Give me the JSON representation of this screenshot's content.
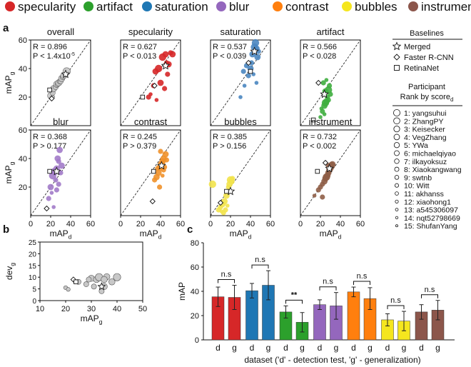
{
  "legend_top": [
    {
      "label": "specularity",
      "color": "#d62728"
    },
    {
      "label": "artifact",
      "color": "#2ca02c"
    },
    {
      "label": "saturation",
      "color": "#1f77b4"
    },
    {
      "label": "blur",
      "color": "#9467bd"
    },
    {
      "label": "contrast",
      "color": "#ff7f0e"
    },
    {
      "label": "bubbles",
      "color": "#f5e61e"
    },
    {
      "label": "instrument",
      "color": "#8c564b"
    }
  ],
  "panel_labels": {
    "a": "a",
    "b": "b",
    "c": "c"
  },
  "baselines": {
    "title": "Baselines",
    "items": [
      {
        "label": "Merged",
        "marker": "star"
      },
      {
        "label": "Faster R-CNN",
        "marker": "diamond"
      },
      {
        "label": "RetinaNet",
        "marker": "square"
      }
    ]
  },
  "participants": {
    "title_line1": "Participant",
    "title_line2": "Rank by score",
    "title_sub": "d",
    "items": [
      "1: yangsuhui",
      "2: ZhangPY",
      "3: Keisecker",
      "4: VegZhang",
      "5: YWa",
      "6: michaelqiyao",
      "7: ilkayoksuz",
      "8: Xiaokangwang",
      "9: swtnb",
      "10: Witt",
      "11: akhanss",
      "12: xiaohong1",
      "13: a545306097",
      "14: nqt52798669",
      "15: ShufanYang"
    ]
  },
  "chart_data": [
    {
      "type": "scatter",
      "id": "a-grid",
      "xlabel": "mAP",
      "xlabel_sub": "d",
      "ylabel": "mAP",
      "ylabel_sub": "g",
      "xlim": [
        0,
        60
      ],
      "ylim": [
        0,
        60
      ],
      "ticks": [
        0,
        20,
        40,
        60
      ],
      "panels": [
        {
          "title": "overall",
          "color": "#c8c8c8",
          "R": "R = 0.896",
          "P": "P < 1.4x10",
          "P_sup": "-5",
          "points": [
            [
              20,
              21,
              4
            ],
            [
              22,
              23,
              3
            ],
            [
              23,
              26,
              4
            ],
            [
              25,
              27,
              3
            ],
            [
              26,
              29,
              4
            ],
            [
              27,
              29,
              3
            ],
            [
              28,
              30,
              4
            ],
            [
              29,
              31,
              3
            ],
            [
              30,
              31,
              3
            ],
            [
              31,
              33,
              4
            ],
            [
              32,
              34,
              3
            ],
            [
              33,
              35,
              4
            ],
            [
              35,
              36,
              3
            ],
            [
              36,
              38,
              5
            ],
            [
              22,
              20,
              2
            ]
          ],
          "star": [
            35,
            36
          ],
          "diamond": [
            21,
            19
          ],
          "square": [
            19,
            25
          ]
        },
        {
          "title": "specularity",
          "color": "#d62728",
          "R": "R = 0.627",
          "P": "P < 0.013",
          "points": [
            [
              28,
              20,
              3
            ],
            [
              30,
              22,
              2
            ],
            [
              33,
              28,
              3
            ],
            [
              35,
              38,
              4
            ],
            [
              38,
              40,
              5
            ],
            [
              40,
              30,
              4
            ],
            [
              42,
              48,
              5
            ],
            [
              45,
              50,
              4
            ],
            [
              47,
              36,
              3
            ],
            [
              48,
              43,
              4
            ],
            [
              50,
              51,
              3
            ],
            [
              52,
              50,
              4
            ],
            [
              44,
              26,
              3
            ],
            [
              36,
              18,
              2
            ],
            [
              46,
              44,
              3
            ]
          ],
          "star": [
            45,
            42
          ],
          "diamond": [
            34,
            28
          ],
          "square": [
            22,
            20
          ]
        },
        {
          "title": "saturation",
          "color": "#4a86c0",
          "R": "R = 0.537",
          "P": "P < 0.039",
          "points": [
            [
              30,
              20,
              2
            ],
            [
              34,
              28,
              2
            ],
            [
              38,
              35,
              3
            ],
            [
              40,
              40,
              4
            ],
            [
              42,
              50,
              4
            ],
            [
              44,
              55,
              5
            ],
            [
              45,
              58,
              5
            ],
            [
              46,
              54,
              4
            ],
            [
              47,
              48,
              4
            ],
            [
              41,
              44,
              3
            ],
            [
              36,
              42,
              3
            ],
            [
              43,
              36,
              2
            ],
            [
              48,
              52,
              3
            ],
            [
              33,
              38,
              3
            ],
            [
              46,
              30,
              2
            ]
          ],
          "star": [
            44,
            52
          ],
          "diamond": [
            38,
            44
          ],
          "square": [
            40,
            38
          ]
        },
        {
          "title": "artifact",
          "color": "#3fae3f",
          "R": "R = 0.566",
          "P": "P < 0.028",
          "points": [
            [
              20,
              6,
              2
            ],
            [
              22,
              10,
              3
            ],
            [
              24,
              14,
              4
            ],
            [
              25,
              16,
              5
            ],
            [
              26,
              17,
              4
            ],
            [
              28,
              25,
              5
            ],
            [
              30,
              22,
              3
            ],
            [
              25,
              24,
              4
            ],
            [
              23,
              30,
              3
            ],
            [
              27,
              20,
              3
            ],
            [
              21,
              12,
              2
            ],
            [
              29,
              28,
              3
            ],
            [
              26,
              32,
              2
            ],
            [
              24,
              8,
              2
            ],
            [
              28,
              18,
              3
            ]
          ],
          "star": [
            24,
            22
          ],
          "diamond": [
            18,
            30
          ],
          "square": [
            13,
            4
          ]
        },
        {
          "title": "blur",
          "color": "#a27bc9",
          "R": "R = 0.368",
          "P": "P > 0.177",
          "points": [
            [
              18,
              12,
              3
            ],
            [
              20,
              20,
              4
            ],
            [
              22,
              28,
              5
            ],
            [
              24,
              31,
              5
            ],
            [
              25,
              25,
              3
            ],
            [
              26,
              33,
              4
            ],
            [
              27,
              40,
              4
            ],
            [
              28,
              38,
              3
            ],
            [
              29,
              46,
              4
            ],
            [
              30,
              30,
              3
            ],
            [
              31,
              35,
              4
            ],
            [
              26,
              18,
              3
            ],
            [
              23,
              6,
              2
            ],
            [
              28,
              22,
              3
            ],
            [
              21,
              16,
              2
            ]
          ],
          "star": [
            26,
            31
          ],
          "diamond": [
            16,
            5
          ],
          "square": [
            19,
            31
          ]
        },
        {
          "title": "contrast",
          "color": "#f0912a",
          "R": "R = 0.245",
          "P": "P > 0.379",
          "points": [
            [
              34,
              25,
              3
            ],
            [
              36,
              27,
              4
            ],
            [
              38,
              30,
              4
            ],
            [
              40,
              34,
              5
            ],
            [
              41,
              36,
              5
            ],
            [
              42,
              38,
              4
            ],
            [
              43,
              40,
              4
            ],
            [
              44,
              34,
              3
            ],
            [
              45,
              43,
              4
            ],
            [
              46,
              39,
              3
            ],
            [
              39,
              20,
              3
            ],
            [
              37,
              33,
              3
            ],
            [
              42,
              28,
              2
            ],
            [
              40,
              45,
              3
            ],
            [
              43,
              32,
              3
            ]
          ],
          "star": [
            41,
            35
          ],
          "diamond": [
            32,
            10
          ],
          "square": [
            33,
            31
          ]
        },
        {
          "title": "bubbles",
          "color": "#f2e34c",
          "R": "R = 0.385",
          "P": "P > 0.156",
          "points": [
            [
              2,
              22,
              5
            ],
            [
              8,
              4,
              3
            ],
            [
              10,
              6,
              3
            ],
            [
              12,
              8,
              4
            ],
            [
              14,
              10,
              4
            ],
            [
              16,
              14,
              4
            ],
            [
              18,
              20,
              3
            ],
            [
              19,
              22,
              4
            ],
            [
              20,
              25,
              5
            ],
            [
              21,
              24,
              4
            ],
            [
              22,
              26,
              3
            ],
            [
              15,
              4,
              3
            ],
            [
              17,
              7,
              2
            ],
            [
              13,
              2,
              3
            ],
            [
              11,
              3,
              2
            ]
          ],
          "star": [
            20,
            17
          ],
          "diamond": [
            10,
            9
          ],
          "square": [
            16,
            17
          ]
        },
        {
          "title": "instrument",
          "color": "#8f5e47",
          "R": "R = 0.732",
          "P": "P < 0.002",
          "points": [
            [
              14,
              14,
              2
            ],
            [
              18,
              18,
              3
            ],
            [
              20,
              20,
              3
            ],
            [
              22,
              22,
              3
            ],
            [
              24,
              24,
              4
            ],
            [
              25,
              26,
              4
            ],
            [
              26,
              27,
              5
            ],
            [
              27,
              28,
              4
            ],
            [
              28,
              30,
              4
            ],
            [
              29,
              32,
              4
            ],
            [
              30,
              33,
              4
            ],
            [
              31,
              35,
              5
            ],
            [
              32,
              36,
              4
            ],
            [
              22,
              13,
              3
            ],
            [
              28,
              35,
              3
            ]
          ],
          "star": [
            29,
            33
          ],
          "diamond": [
            25,
            37
          ],
          "square": [
            17,
            31
          ]
        }
      ]
    },
    {
      "type": "scatter",
      "id": "b",
      "xlabel": "mAP",
      "xlabel_sub": "g",
      "ylabel": "dev",
      "ylabel_sub": "g",
      "xlim": [
        10,
        50
      ],
      "ylim": [
        0,
        25
      ],
      "xticks": [
        10,
        20,
        30,
        40,
        50
      ],
      "yticks": [
        0,
        5,
        10,
        15,
        20,
        25
      ],
      "points": [
        [
          20,
          5.5,
          2
        ],
        [
          21,
          4.8,
          2
        ],
        [
          25,
          8,
          3
        ],
        [
          28,
          7,
          3
        ],
        [
          30,
          9.5,
          4
        ],
        [
          32,
          9,
          4
        ],
        [
          33,
          10,
          5
        ],
        [
          35,
          6,
          4
        ],
        [
          34,
          4,
          3
        ],
        [
          36,
          10.2,
          4
        ],
        [
          38,
          8,
          4
        ],
        [
          40,
          10,
          5
        ],
        [
          29,
          9,
          3
        ],
        [
          31,
          6,
          3
        ],
        [
          35,
          9,
          4
        ]
      ],
      "star": [
        34,
        6
      ],
      "diamond": [
        23,
        9
      ],
      "square": [
        24,
        8
      ]
    },
    {
      "type": "bar",
      "id": "c",
      "ylabel": "mAP",
      "xlabel": "dataset ('d' - detection test, 'g' - generalization)",
      "ylim": [
        0,
        80
      ],
      "yticks": [
        0,
        20,
        40,
        60,
        80
      ],
      "categories": [
        "specularity",
        "saturation",
        "artifact",
        "blur",
        "contrast",
        "bubbles",
        "instrument"
      ],
      "sub_labels": [
        "d",
        "g"
      ],
      "series": [
        {
          "name": "d",
          "values": [
            35.5,
            40.5,
            23,
            29,
            39.5,
            16.5,
            23
          ],
          "errors": [
            8,
            6,
            5,
            4,
            4,
            5,
            6
          ]
        },
        {
          "name": "g",
          "values": [
            35,
            45,
            14.5,
            28,
            34,
            15.5,
            24.5
          ],
          "errors": [
            10,
            12,
            8,
            11,
            9,
            8,
            8
          ]
        }
      ],
      "colors": [
        "#d62728",
        "#1f77b4",
        "#2ca02c",
        "#9467bd",
        "#ff7f0e",
        "#f5e61e",
        "#8c564b"
      ],
      "significance": [
        "n.s",
        "n.s",
        "**",
        "n.s",
        "n.s",
        "n.s",
        "n.s"
      ]
    }
  ]
}
